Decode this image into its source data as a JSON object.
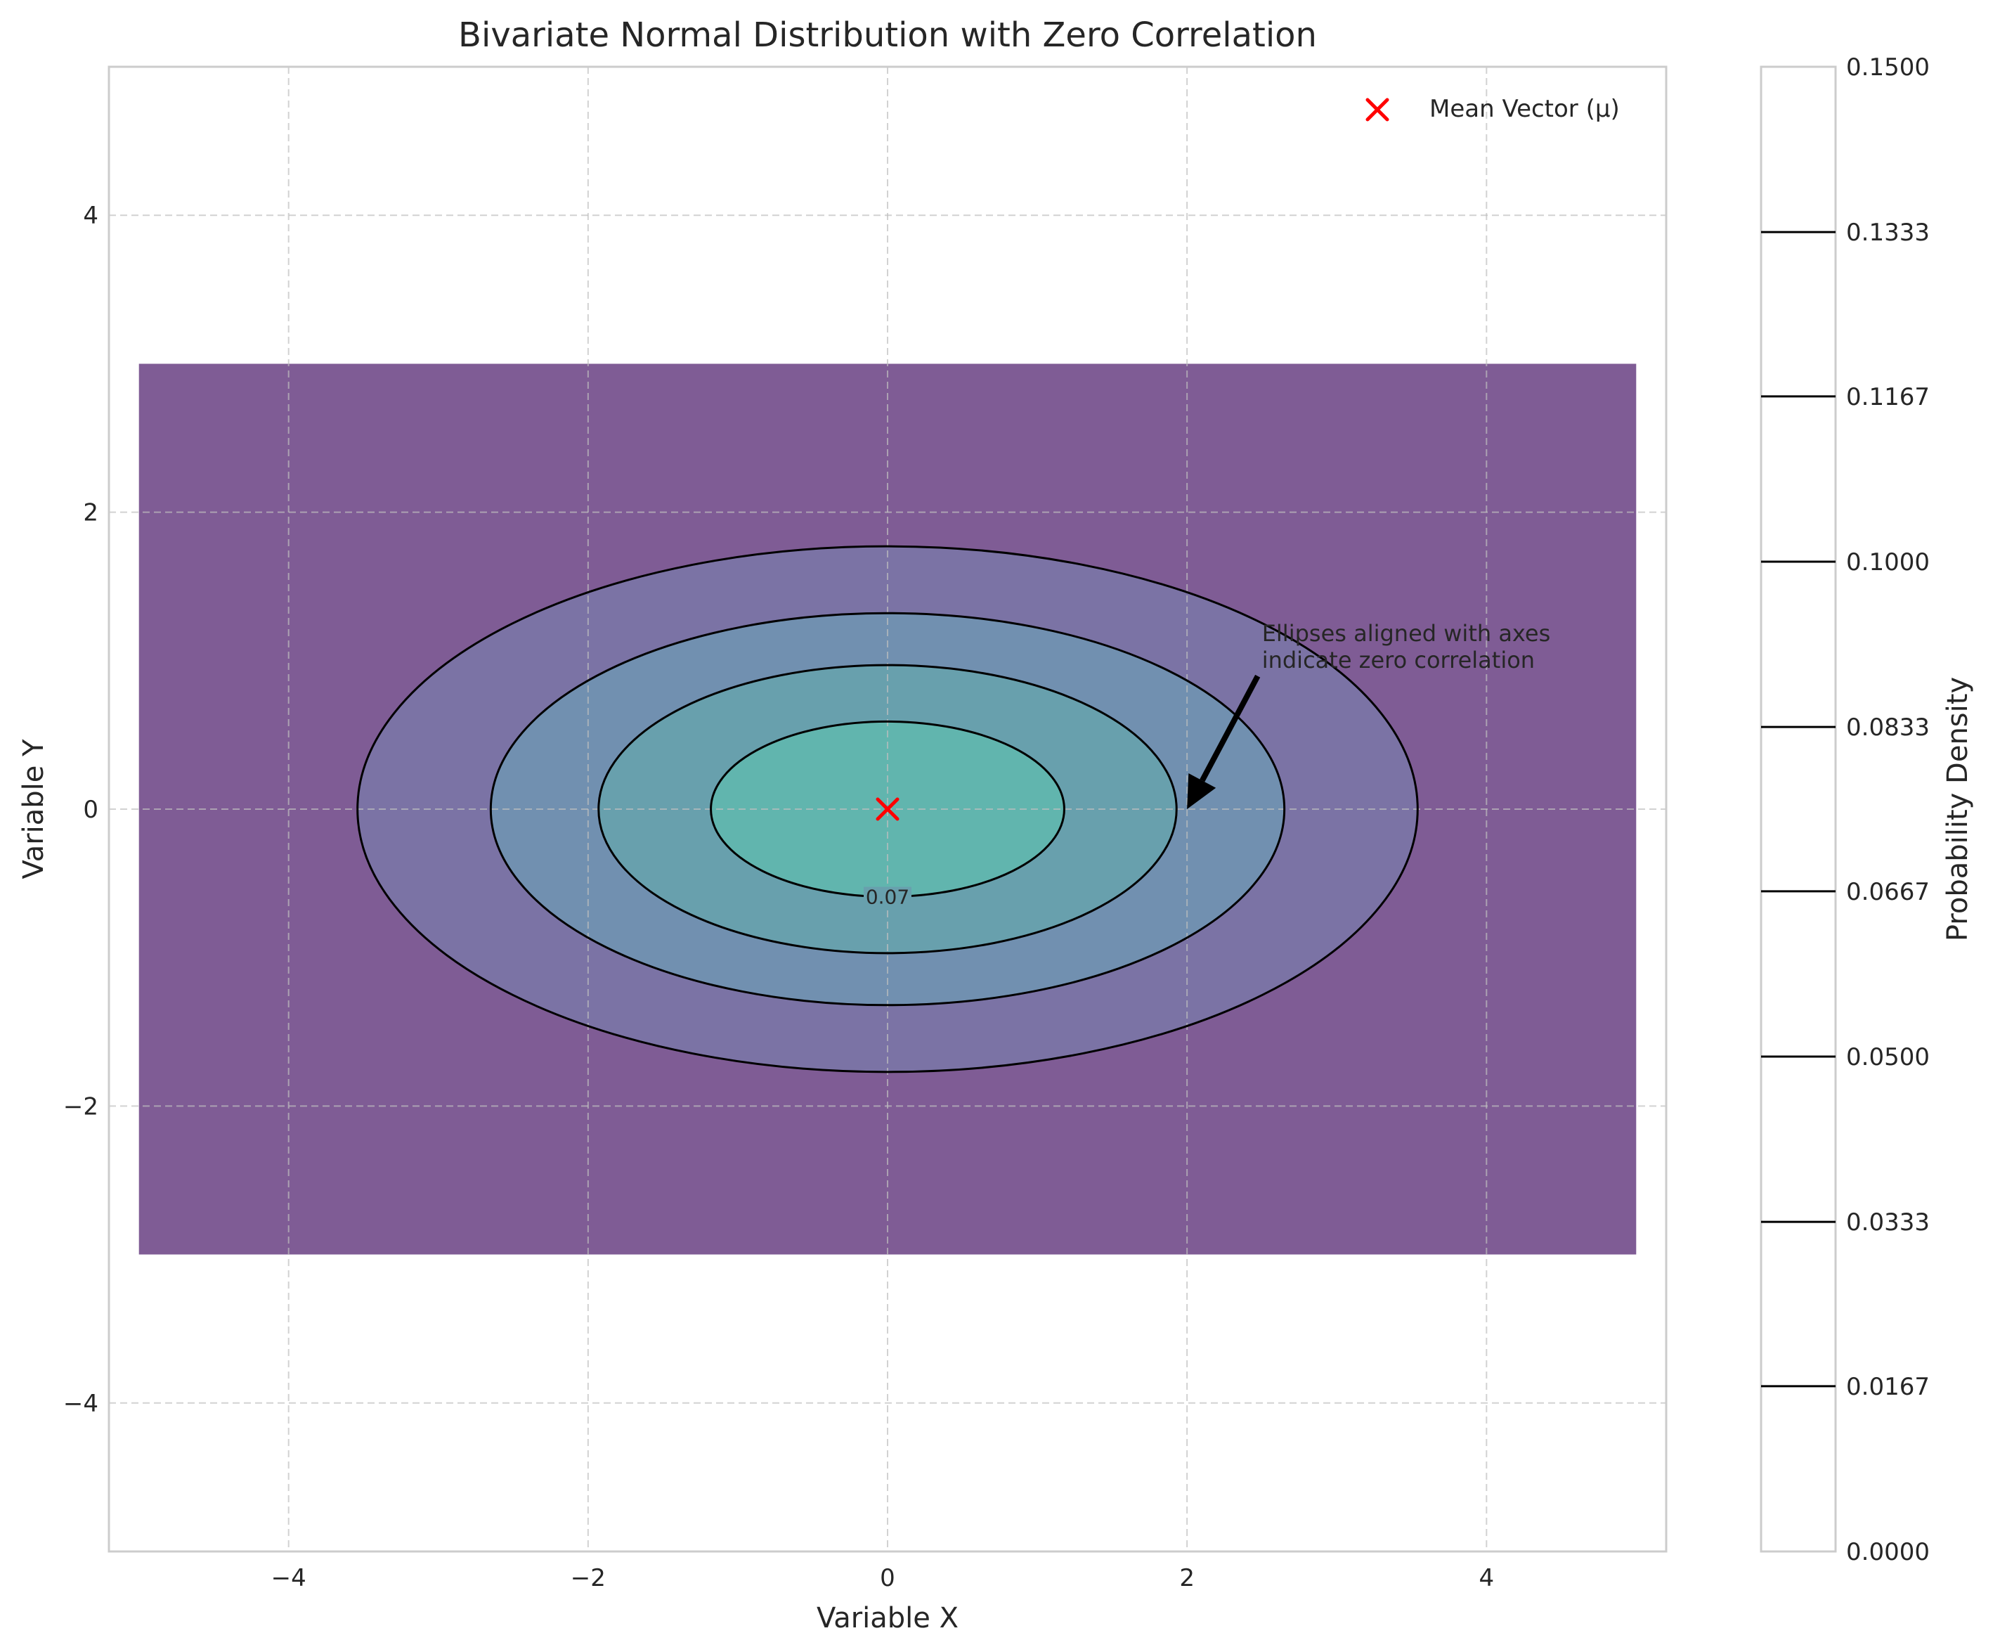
{
  "chart_data": {
    "type": "contour",
    "title": "Bivariate Normal Distribution with Zero Correlation",
    "xlabel": "Variable X",
    "ylabel": "Variable Y",
    "xlim": [
      -5.2,
      5.2
    ],
    "ylim": [
      -5,
      5
    ],
    "xticks": [
      -4,
      -2,
      0,
      2,
      4
    ],
    "yticks": [
      -4,
      -2,
      0,
      2,
      4
    ],
    "xtick_labels": [
      "−4",
      "−2",
      "0",
      "2",
      "4"
    ],
    "ytick_labels": [
      "−4",
      "−2",
      "0",
      "2",
      "4"
    ],
    "grid": true,
    "grid_style": "dashed",
    "domain_x": [
      -5,
      5
    ],
    "domain_y": [
      -3,
      3
    ],
    "mean": [
      0,
      0
    ],
    "contour_regions": [
      {
        "semi_axis_x": 5.0,
        "semi_axis_y": 3.0,
        "color": "#7f5c95"
      },
      {
        "semi_axis_x": 3.54,
        "semi_axis_y": 1.77,
        "color": "#7b73a5"
      },
      {
        "semi_axis_x": 2.65,
        "semi_axis_y": 1.32,
        "color": "#7190b0"
      },
      {
        "semi_axis_x": 1.93,
        "semi_axis_y": 0.97,
        "color": "#68a0ad"
      },
      {
        "semi_axis_x": 1.18,
        "semi_axis_y": 0.59,
        "color": "#61b5ae"
      }
    ],
    "contour_lines": [
      {
        "semi_axis_x": 3.54,
        "semi_axis_y": 1.77
      },
      {
        "semi_axis_x": 2.65,
        "semi_axis_y": 1.32
      },
      {
        "semi_axis_x": 1.93,
        "semi_axis_y": 0.97
      },
      {
        "semi_axis_x": 1.18,
        "semi_axis_y": 0.59
      }
    ],
    "contour_label": {
      "text": "0.07",
      "x": 0,
      "y": -0.59
    },
    "mean_marker": {
      "x": 0,
      "y": 0,
      "color": "#ff0000",
      "marker": "x"
    },
    "legend": {
      "entries": [
        "Mean Vector (μ)"
      ],
      "position": "upper right"
    },
    "annotation": {
      "text": [
        "Ellipses aligned with axes",
        "indicate zero correlation"
      ],
      "text_x": 2.5,
      "text_y": 1.0,
      "arrow_to_x": 2.0,
      "arrow_to_y": 0.0
    },
    "colorbar": {
      "label": "Probability Density",
      "range": [
        0.0,
        0.15
      ],
      "ticks": [
        "0.0000",
        "0.0167",
        "0.0333",
        "0.0500",
        "0.0667",
        "0.0833",
        "0.1000",
        "0.1167",
        "0.1333",
        "0.1500"
      ],
      "line_levels": [
        0.0167,
        0.0333,
        0.05,
        0.0667,
        0.0833,
        0.1,
        0.1167,
        0.1333
      ]
    }
  }
}
